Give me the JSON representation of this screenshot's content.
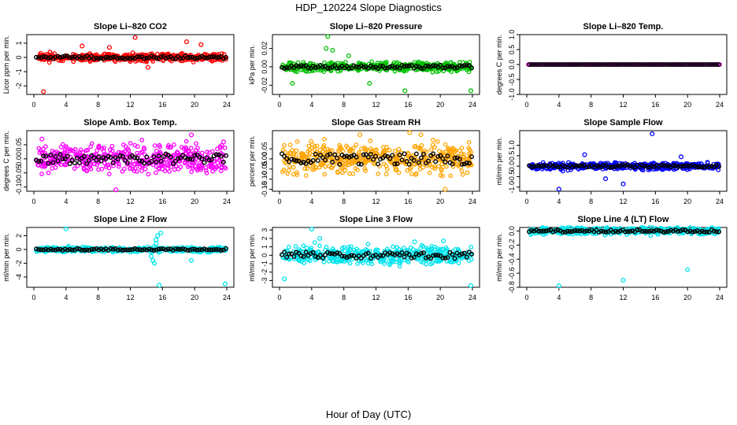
{
  "figure": {
    "title": "HDP_120224  Slope Diagnostics",
    "xlabel": "Hour of Day (UTC)"
  },
  "chart_data": [
    {
      "type": "scatter",
      "title": "Slope Li–820 CO2",
      "ylabel": "Licor ppm per min.",
      "color": "#ff0000",
      "xlim": [
        0,
        24
      ],
      "ylim": [
        -2.6,
        1.6
      ],
      "xticks": [
        0,
        4,
        8,
        12,
        16,
        20,
        24
      ],
      "yticks": [
        -2,
        -1,
        0,
        1
      ],
      "ytick_labels": [
        "-2",
        "-1",
        "0",
        "1"
      ],
      "spread": 0.22,
      "seed": 11,
      "outliers": [
        [
          1.2,
          -2.4
        ],
        [
          12.6,
          1.4
        ],
        [
          6.0,
          0.8
        ],
        [
          19.0,
          1.1
        ],
        [
          20.8,
          0.9
        ],
        [
          14.2,
          -0.7
        ],
        [
          9.4,
          0.7
        ]
      ]
    },
    {
      "type": "scatter",
      "title": "Slope Li–820 Pressure",
      "ylabel": "kPa per min.",
      "color": "#00c000",
      "xlim": [
        0,
        24
      ],
      "ylim": [
        -0.03,
        0.035
      ],
      "xticks": [
        0,
        4,
        8,
        12,
        16,
        20,
        24
      ],
      "yticks": [
        -0.02,
        0.0,
        0.02
      ],
      "ytick_labels": [
        "-0.02",
        "0.00",
        "0.02"
      ],
      "spread": 0.004,
      "seed": 23,
      "outliers": [
        [
          6.0,
          0.033
        ],
        [
          5.8,
          0.02
        ],
        [
          6.6,
          0.018
        ],
        [
          1.6,
          -0.018
        ],
        [
          11.2,
          -0.018
        ],
        [
          15.6,
          -0.026
        ],
        [
          23.8,
          -0.026
        ],
        [
          8.6,
          0.012
        ]
      ]
    },
    {
      "type": "scatter",
      "title": "Slope Li–820 Temp.",
      "ylabel": "degrees C per min.",
      "color": "#ff00ff",
      "xlim": [
        0,
        24
      ],
      "ylim": [
        -1.0,
        1.0
      ],
      "xticks": [
        0,
        4,
        8,
        12,
        16,
        20,
        24
      ],
      "yticks": [
        -1.0,
        -0.5,
        0.0,
        0.5,
        1.0
      ],
      "ytick_labels": [
        "-1.0",
        "-0.5",
        "0.0",
        "0.5",
        "1.0"
      ],
      "spread": 0.0,
      "seed": 5,
      "outliers": []
    },
    {
      "type": "scatter",
      "title": "Slope Amb. Box Temp.",
      "ylabel": "degrees C per min.",
      "color": "#ff00ff",
      "xlim": [
        0,
        24
      ],
      "ylim": [
        -0.115,
        0.1
      ],
      "xticks": [
        0,
        4,
        8,
        12,
        16,
        20,
        24
      ],
      "yticks": [
        -0.1,
        -0.05,
        0.0,
        0.05
      ],
      "ytick_labels": [
        "-0.10",
        "-0.05",
        "0.00",
        "0.05"
      ],
      "spread": 0.04,
      "seed": 37,
      "outliers": [
        [
          19.6,
          0.085
        ],
        [
          23.6,
          0.06
        ],
        [
          1.0,
          0.07
        ],
        [
          10.2,
          -0.11
        ]
      ]
    },
    {
      "type": "scatter",
      "title": "Slope Gas Stream RH",
      "ylabel": "percent per min.",
      "color": "#ffa500",
      "xlim": [
        0,
        24
      ],
      "ylim": [
        -0.16,
        0.14
      ],
      "xticks": [
        0,
        4,
        8,
        12,
        16,
        20,
        24
      ],
      "yticks": [
        -0.15,
        -0.1,
        -0.05,
        0.0,
        0.05
      ],
      "ytick_labels": [
        "-0.15",
        "-0.10",
        "-0.05",
        "0.00",
        "0.05"
      ],
      "spread": 0.06,
      "seed": 41,
      "outliers": [
        [
          10.0,
          0.12
        ],
        [
          16.2,
          0.13
        ],
        [
          17.6,
          0.12
        ],
        [
          20.6,
          -0.15
        ]
      ]
    },
    {
      "type": "scatter",
      "title": "Slope Sample Flow",
      "ylabel": "ml/min per min.",
      "color": "#0000ff",
      "xlim": [
        0,
        24
      ],
      "ylim": [
        -1.2,
        1.7
      ],
      "xticks": [
        0,
        4,
        8,
        12,
        16,
        20,
        24
      ],
      "yticks": [
        -1.0,
        -0.5,
        0.0,
        0.5,
        1.0
      ],
      "ytick_labels": [
        "-1.0",
        "-0.5",
        "0.0",
        "0.5",
        "1.0"
      ],
      "spread": 0.14,
      "seed": 53,
      "outliers": [
        [
          15.6,
          1.55
        ],
        [
          4.0,
          -1.1
        ],
        [
          12.0,
          -0.85
        ],
        [
          7.2,
          0.55
        ],
        [
          19.2,
          0.45
        ],
        [
          9.8,
          -0.6
        ]
      ]
    },
    {
      "type": "scatter",
      "title": "Slope Line 2 Flow",
      "ylabel": "ml/min per min.",
      "color": "#00e5ee",
      "xlim": [
        0,
        24
      ],
      "ylim": [
        -5.5,
        3.2
      ],
      "xticks": [
        0,
        4,
        8,
        12,
        16,
        20,
        24
      ],
      "yticks": [
        -4,
        -2,
        0,
        2
      ],
      "ytick_labels": [
        "-4",
        "-2",
        "0",
        "2"
      ],
      "spread": 0.3,
      "seed": 67,
      "outliers": [
        [
          4.0,
          3.0
        ],
        [
          15.4,
          2.0
        ],
        [
          15.8,
          2.4
        ],
        [
          15.2,
          1.4
        ],
        [
          14.6,
          -1.0
        ],
        [
          14.8,
          -1.6
        ],
        [
          15.0,
          -2.0
        ],
        [
          15.6,
          -5.2
        ],
        [
          19.6,
          -1.6
        ],
        [
          23.8,
          -5.0
        ],
        [
          15.2,
          0.9
        ]
      ]
    },
    {
      "type": "scatter",
      "title": "Slope Line 3 Flow",
      "ylabel": "ml/min per min.",
      "color": "#00e5ee",
      "xlim": [
        0,
        24
      ],
      "ylim": [
        -3.8,
        3.3
      ],
      "xticks": [
        0,
        4,
        8,
        12,
        16,
        20,
        24
      ],
      "yticks": [
        -3,
        -2,
        -1,
        0,
        1,
        2,
        3
      ],
      "ytick_labels": [
        "-3",
        "-2",
        "-1",
        "0",
        "1",
        "2",
        "3"
      ],
      "spread": 0.85,
      "seed": 79,
      "outliers": [
        [
          4.0,
          3.1
        ],
        [
          5.0,
          2.0
        ],
        [
          23.8,
          -3.6
        ],
        [
          0.6,
          -2.8
        ],
        [
          16.8,
          1.6
        ],
        [
          20.4,
          1.7
        ]
      ]
    },
    {
      "type": "scatter",
      "title": "Slope Line 4 (LT) Flow",
      "ylabel": "ml/min per min.",
      "color": "#00e5ee",
      "xlim": [
        0,
        24
      ],
      "ylim": [
        -0.8,
        0.05
      ],
      "xticks": [
        0,
        4,
        8,
        12,
        16,
        20,
        24
      ],
      "yticks": [
        -0.8,
        -0.6,
        -0.4,
        -0.2,
        0.0
      ],
      "ytick_labels": [
        "-0.8",
        "-0.6",
        "-0.4",
        "-0.2",
        "0.0"
      ],
      "spread": 0.04,
      "seed": 97,
      "outliers": [
        [
          4.0,
          -0.78
        ],
        [
          12.0,
          -0.7
        ],
        [
          20.0,
          -0.55
        ]
      ]
    }
  ]
}
